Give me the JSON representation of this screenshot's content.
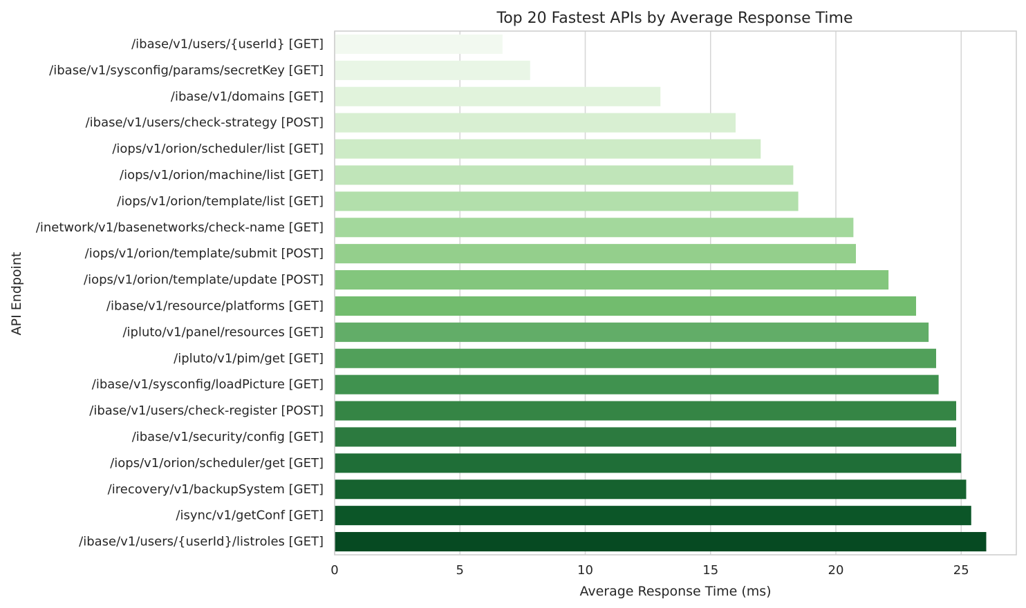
{
  "chart_data": {
    "type": "bar",
    "orientation": "horizontal",
    "title": "Top 20 Fastest APIs by Average Response Time",
    "xlabel": "Average Response Time (ms)",
    "ylabel": "API Endpoint",
    "xlim": [
      0,
      27.2
    ],
    "xticks": [
      0,
      5,
      10,
      15,
      20,
      25
    ],
    "grid": "x",
    "categories": [
      "/ibase/v1/users/{userId} [GET]",
      "/ibase/v1/sysconfig/params/secretKey [GET]",
      "/ibase/v1/domains [GET]",
      "/ibase/v1/users/check-strategy [POST]",
      "/iops/v1/orion/scheduler/list [GET]",
      "/iops/v1/orion/machine/list [GET]",
      "/iops/v1/orion/template/list [GET]",
      "/inetwork/v1/basenetworks/check-name [GET]",
      "/iops/v1/orion/template/submit [POST]",
      "/iops/v1/orion/template/update [POST]",
      "/ibase/v1/resource/platforms [GET]",
      "/ipluto/v1/panel/resources [GET]",
      "/ipluto/v1/pim/get [GET]",
      "/ibase/v1/sysconfig/loadPicture [GET]",
      "/ibase/v1/users/check-register [POST]",
      "/ibase/v1/security/config [GET]",
      "/iops/v1/orion/scheduler/get [GET]",
      "/irecovery/v1/backupSystem [GET]",
      "/isync/v1/getConf [GET]",
      "/ibase/v1/users/{userId}/listroles [GET]"
    ],
    "values": [
      6.7,
      7.8,
      13.0,
      16.0,
      17.0,
      18.3,
      18.5,
      20.7,
      20.8,
      22.1,
      23.2,
      23.7,
      24.0,
      24.1,
      24.8,
      24.8,
      25.0,
      25.2,
      25.4,
      26.0
    ],
    "colors": [
      "#f2f9f0",
      "#e9f6e6",
      "#e1f3dc",
      "#d8efd2",
      "#cdebc6",
      "#c0e5b9",
      "#b2dfab",
      "#a3d89c",
      "#94cf8c",
      "#83c67d",
      "#72bc6e",
      "#62ad68",
      "#51a05a",
      "#40924f",
      "#358545",
      "#2c7a3f",
      "#1f6e37",
      "#16622f",
      "#0c5628",
      "#064a22"
    ]
  }
}
